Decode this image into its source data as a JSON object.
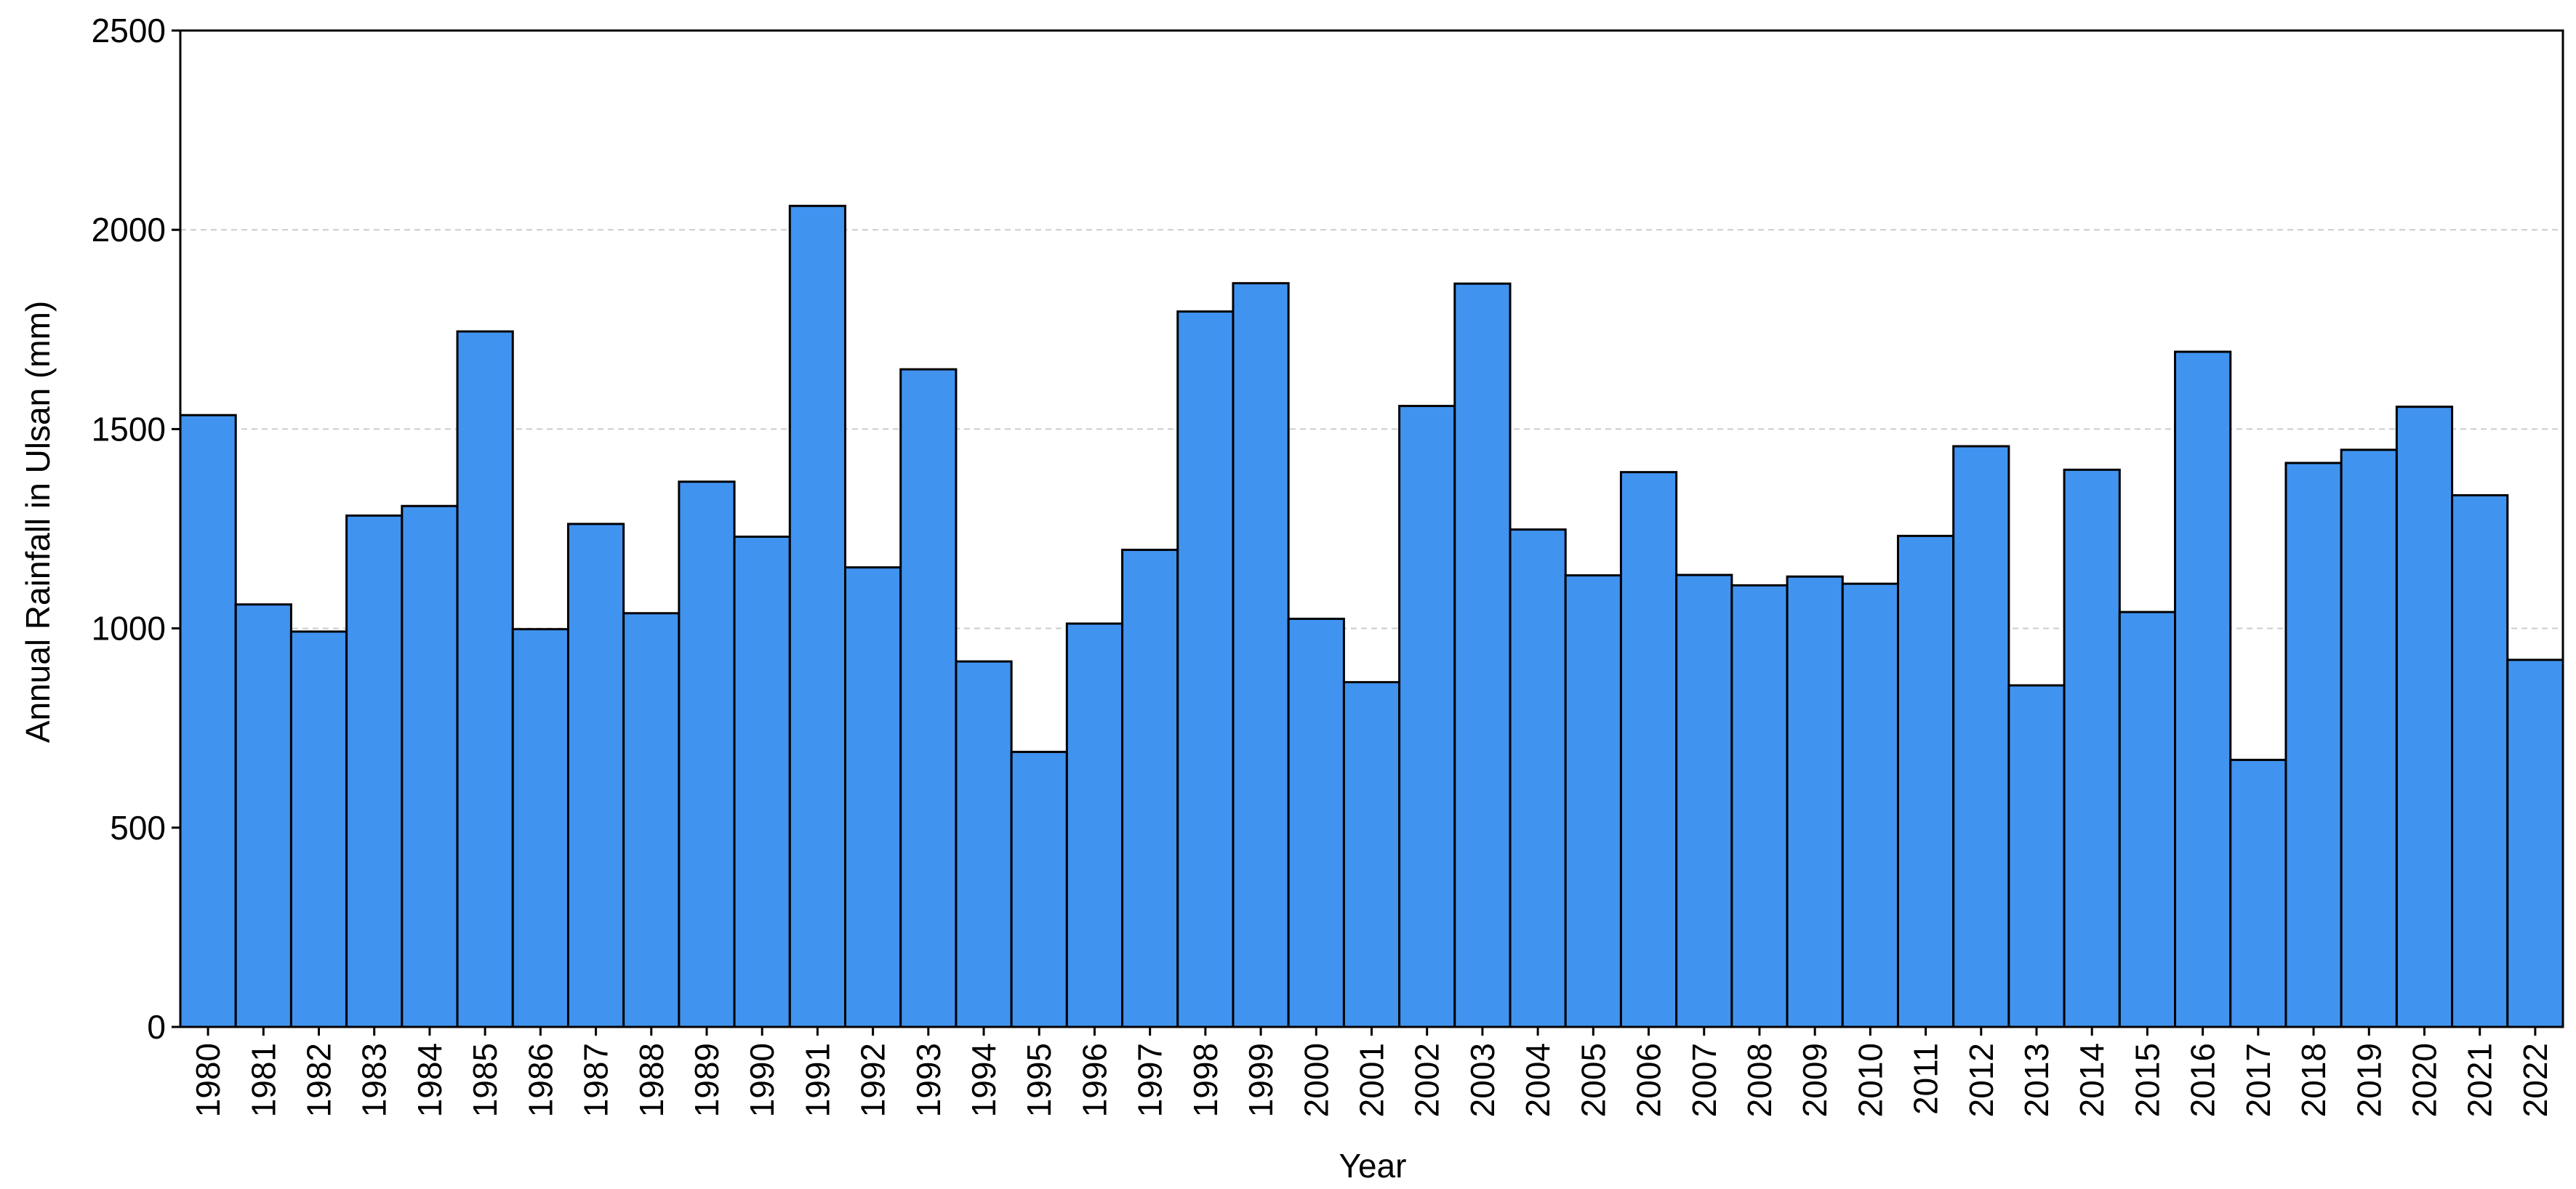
{
  "chart_data": {
    "type": "bar",
    "title": "",
    "xlabel": "Year",
    "ylabel": "Annual Rainfall in Ulsan (mm)",
    "ylim": [
      0,
      2500
    ],
    "yticks": [
      "0",
      "500",
      "1000",
      "1500",
      "2000",
      "2500"
    ],
    "grid": "horizontal dashed",
    "bar_color": "#4193F0",
    "bar_edge_color": "#000000",
    "grid_color": "#cccccc",
    "categories": [
      "1980",
      "1981",
      "1982",
      "1983",
      "1984",
      "1985",
      "1986",
      "1987",
      "1988",
      "1989",
      "1990",
      "1991",
      "1992",
      "1993",
      "1994",
      "1995",
      "1996",
      "1997",
      "1998",
      "1999",
      "2000",
      "2001",
      "2002",
      "2003",
      "2004",
      "2005",
      "2006",
      "2007",
      "2008",
      "2009",
      "2010",
      "2011",
      "2012",
      "2013",
      "2014",
      "2015",
      "2016",
      "2017",
      "2018",
      "2019",
      "2020",
      "2021",
      "2022"
    ],
    "values": [
      1535,
      1060,
      992,
      1283,
      1307,
      1745,
      998,
      1262,
      1038,
      1368,
      1230,
      2060,
      1153,
      1650,
      917,
      690,
      1012,
      1197,
      1795,
      1866,
      1024,
      865,
      1558,
      1865,
      1248,
      1133,
      1392,
      1134,
      1108,
      1130,
      1112,
      1232,
      1457,
      857,
      1398,
      1041,
      1694,
      670,
      1415,
      1448,
      1556,
      1334,
      921
    ]
  }
}
